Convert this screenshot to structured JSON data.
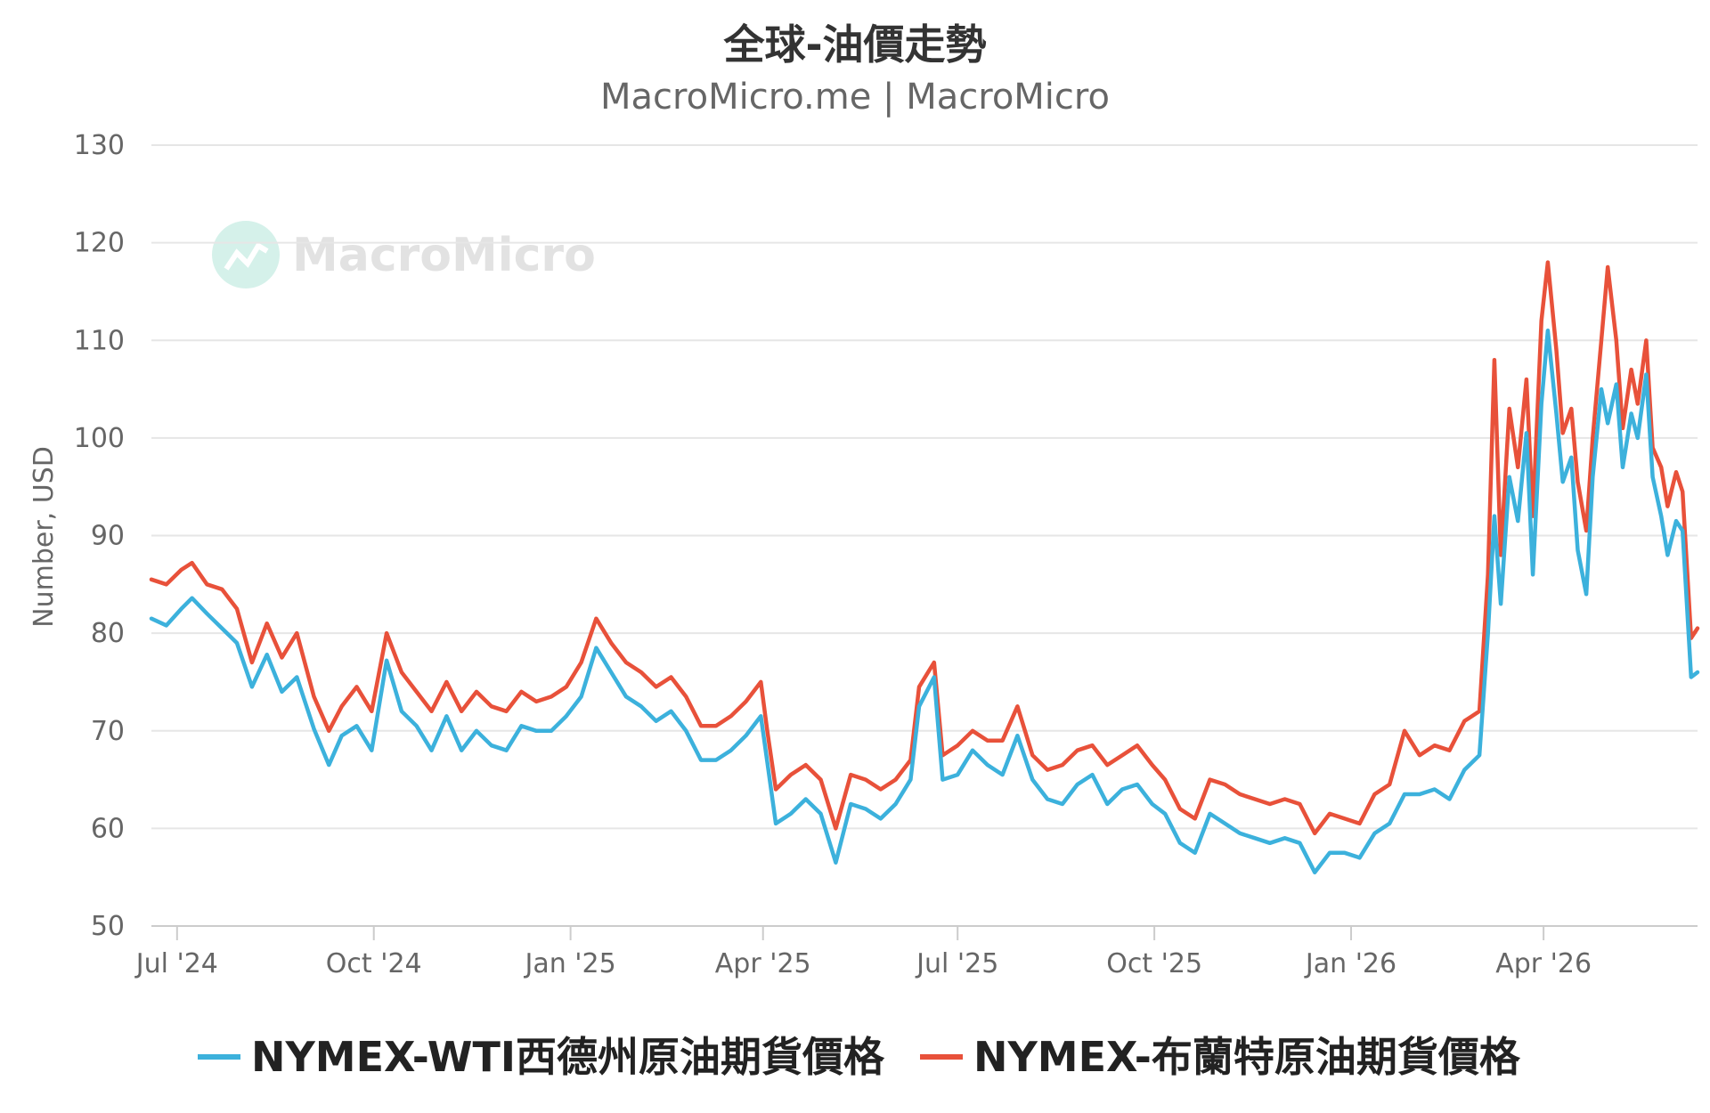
{
  "chart_data": {
    "type": "line",
    "title": "全球-油價走勢",
    "subtitle": "MacroMicro.me | MacroMicro",
    "watermark": "MacroMicro",
    "ylabel": "Number, USD",
    "xlabel": "",
    "ylim": [
      50,
      130
    ],
    "yticks": [
      50,
      60,
      70,
      80,
      90,
      100,
      110,
      120,
      130
    ],
    "xticks": [
      "Jul '24",
      "Oct '24",
      "Jan '25",
      "Apr '25",
      "Jul '25",
      "Oct '25",
      "Jan '26",
      "Apr '26"
    ],
    "xtick_dates": [
      "2024-07-01",
      "2024-10-01",
      "2025-01-01",
      "2025-04-01",
      "2025-07-01",
      "2025-10-01",
      "2026-01-01",
      "2026-04-01"
    ],
    "xlim": [
      "2024-06-19",
      "2026-06-12"
    ],
    "grid": true,
    "legend_position": "bottom",
    "series": [
      {
        "name": "NYMEX-WTI西德州原油期貨價格",
        "color": "#3cb1dc",
        "points": [
          [
            "2024-06-19",
            81.5
          ],
          [
            "2024-06-26",
            80.8
          ],
          [
            "2024-07-03",
            82.5
          ],
          [
            "2024-07-08",
            83.6
          ],
          [
            "2024-07-15",
            82.0
          ],
          [
            "2024-07-22",
            80.5
          ],
          [
            "2024-07-29",
            79.0
          ],
          [
            "2024-08-05",
            74.5
          ],
          [
            "2024-08-12",
            77.8
          ],
          [
            "2024-08-19",
            74.0
          ],
          [
            "2024-08-26",
            75.5
          ],
          [
            "2024-09-03",
            70.2
          ],
          [
            "2024-09-10",
            66.5
          ],
          [
            "2024-09-16",
            69.5
          ],
          [
            "2024-09-23",
            70.5
          ],
          [
            "2024-09-30",
            68.0
          ],
          [
            "2024-10-07",
            77.2
          ],
          [
            "2024-10-14",
            72.0
          ],
          [
            "2024-10-21",
            70.5
          ],
          [
            "2024-10-28",
            68.0
          ],
          [
            "2024-11-04",
            71.5
          ],
          [
            "2024-11-11",
            68.0
          ],
          [
            "2024-11-18",
            70.0
          ],
          [
            "2024-11-25",
            68.5
          ],
          [
            "2024-12-02",
            68.0
          ],
          [
            "2024-12-09",
            70.5
          ],
          [
            "2024-12-16",
            70.0
          ],
          [
            "2024-12-23",
            70.0
          ],
          [
            "2024-12-30",
            71.5
          ],
          [
            "2025-01-06",
            73.5
          ],
          [
            "2025-01-13",
            78.5
          ],
          [
            "2025-01-20",
            76.0
          ],
          [
            "2025-01-27",
            73.5
          ],
          [
            "2025-02-03",
            72.5
          ],
          [
            "2025-02-10",
            71.0
          ],
          [
            "2025-02-17",
            72.0
          ],
          [
            "2025-02-24",
            70.0
          ],
          [
            "2025-03-03",
            67.0
          ],
          [
            "2025-03-10",
            67.0
          ],
          [
            "2025-03-17",
            68.0
          ],
          [
            "2025-03-24",
            69.5
          ],
          [
            "2025-03-31",
            71.5
          ],
          [
            "2025-04-03",
            66.8
          ],
          [
            "2025-04-07",
            60.5
          ],
          [
            "2025-04-14",
            61.5
          ],
          [
            "2025-04-21",
            63.0
          ],
          [
            "2025-04-28",
            61.5
          ],
          [
            "2025-05-05",
            56.5
          ],
          [
            "2025-05-12",
            62.5
          ],
          [
            "2025-05-19",
            62.0
          ],
          [
            "2025-05-26",
            61.0
          ],
          [
            "2025-06-02",
            62.5
          ],
          [
            "2025-06-09",
            65.0
          ],
          [
            "2025-06-13",
            72.5
          ],
          [
            "2025-06-20",
            75.5
          ],
          [
            "2025-06-24",
            65.0
          ],
          [
            "2025-07-01",
            65.5
          ],
          [
            "2025-07-08",
            68.0
          ],
          [
            "2025-07-15",
            66.5
          ],
          [
            "2025-07-22",
            65.5
          ],
          [
            "2025-07-29",
            69.5
          ],
          [
            "2025-08-05",
            65.0
          ],
          [
            "2025-08-12",
            63.0
          ],
          [
            "2025-08-19",
            62.5
          ],
          [
            "2025-08-26",
            64.5
          ],
          [
            "2025-09-02",
            65.5
          ],
          [
            "2025-09-09",
            62.5
          ],
          [
            "2025-09-16",
            64.0
          ],
          [
            "2025-09-23",
            64.5
          ],
          [
            "2025-09-30",
            62.5
          ],
          [
            "2025-10-06",
            61.5
          ],
          [
            "2025-10-13",
            58.5
          ],
          [
            "2025-10-20",
            57.5
          ],
          [
            "2025-10-27",
            61.5
          ],
          [
            "2025-11-03",
            60.5
          ],
          [
            "2025-11-10",
            59.5
          ],
          [
            "2025-11-17",
            59.0
          ],
          [
            "2025-11-24",
            58.5
          ],
          [
            "2025-12-01",
            59.0
          ],
          [
            "2025-12-08",
            58.5
          ],
          [
            "2025-12-15",
            55.5
          ],
          [
            "2025-12-22",
            57.5
          ],
          [
            "2025-12-29",
            57.5
          ],
          [
            "2026-01-05",
            57.0
          ],
          [
            "2026-01-12",
            59.5
          ],
          [
            "2026-01-19",
            60.5
          ],
          [
            "2026-01-26",
            63.5
          ],
          [
            "2026-02-02",
            63.5
          ],
          [
            "2026-02-09",
            64.0
          ],
          [
            "2026-02-16",
            63.0
          ],
          [
            "2026-02-23",
            66.0
          ],
          [
            "2026-03-02",
            67.5
          ],
          [
            "2026-03-06",
            80.0
          ],
          [
            "2026-03-09",
            92.0
          ],
          [
            "2026-03-12",
            83.0
          ],
          [
            "2026-03-16",
            96.0
          ],
          [
            "2026-03-20",
            91.5
          ],
          [
            "2026-03-24",
            100.5
          ],
          [
            "2026-03-27",
            86.0
          ],
          [
            "2026-03-31",
            103.5
          ],
          [
            "2026-04-03",
            111.0
          ],
          [
            "2026-04-07",
            102.5
          ],
          [
            "2026-04-10",
            95.5
          ],
          [
            "2026-04-14",
            98.0
          ],
          [
            "2026-04-17",
            88.5
          ],
          [
            "2026-04-21",
            84.0
          ],
          [
            "2026-04-24",
            96.0
          ],
          [
            "2026-04-28",
            105.0
          ],
          [
            "2026-05-01",
            101.5
          ],
          [
            "2026-05-05",
            105.5
          ],
          [
            "2026-05-08",
            97.0
          ],
          [
            "2026-05-12",
            102.5
          ],
          [
            "2026-05-15",
            100.0
          ],
          [
            "2026-05-19",
            106.5
          ],
          [
            "2026-05-22",
            96.0
          ],
          [
            "2026-05-26",
            92.0
          ],
          [
            "2026-05-29",
            88.0
          ],
          [
            "2026-06-02",
            91.5
          ],
          [
            "2026-06-05",
            90.5
          ],
          [
            "2026-06-09",
            75.5
          ],
          [
            "2026-06-12",
            76.0
          ]
        ]
      },
      {
        "name": "NYMEX-布蘭特原油期貨價格",
        "color": "#e8513a",
        "points": [
          [
            "2024-06-19",
            85.5
          ],
          [
            "2024-06-26",
            85.0
          ],
          [
            "2024-07-03",
            86.5
          ],
          [
            "2024-07-08",
            87.2
          ],
          [
            "2024-07-15",
            85.0
          ],
          [
            "2024-07-22",
            84.5
          ],
          [
            "2024-07-29",
            82.5
          ],
          [
            "2024-08-05",
            77.0
          ],
          [
            "2024-08-12",
            81.0
          ],
          [
            "2024-08-19",
            77.5
          ],
          [
            "2024-08-26",
            80.0
          ],
          [
            "2024-09-03",
            73.5
          ],
          [
            "2024-09-10",
            70.0
          ],
          [
            "2024-09-16",
            72.5
          ],
          [
            "2024-09-23",
            74.5
          ],
          [
            "2024-09-30",
            72.0
          ],
          [
            "2024-10-07",
            80.0
          ],
          [
            "2024-10-14",
            76.0
          ],
          [
            "2024-10-21",
            74.0
          ],
          [
            "2024-10-28",
            72.0
          ],
          [
            "2024-11-04",
            75.0
          ],
          [
            "2024-11-11",
            72.0
          ],
          [
            "2024-11-18",
            74.0
          ],
          [
            "2024-11-25",
            72.5
          ],
          [
            "2024-12-02",
            72.0
          ],
          [
            "2024-12-09",
            74.0
          ],
          [
            "2024-12-16",
            73.0
          ],
          [
            "2024-12-23",
            73.5
          ],
          [
            "2024-12-30",
            74.5
          ],
          [
            "2025-01-06",
            77.0
          ],
          [
            "2025-01-13",
            81.5
          ],
          [
            "2025-01-20",
            79.0
          ],
          [
            "2025-01-27",
            77.0
          ],
          [
            "2025-02-03",
            76.0
          ],
          [
            "2025-02-10",
            74.5
          ],
          [
            "2025-02-17",
            75.5
          ],
          [
            "2025-02-24",
            73.5
          ],
          [
            "2025-03-03",
            70.5
          ],
          [
            "2025-03-10",
            70.5
          ],
          [
            "2025-03-17",
            71.5
          ],
          [
            "2025-03-24",
            73.0
          ],
          [
            "2025-03-31",
            75.0
          ],
          [
            "2025-04-03",
            70.0
          ],
          [
            "2025-04-07",
            64.0
          ],
          [
            "2025-04-14",
            65.5
          ],
          [
            "2025-04-21",
            66.5
          ],
          [
            "2025-04-28",
            65.0
          ],
          [
            "2025-05-05",
            60.0
          ],
          [
            "2025-05-12",
            65.5
          ],
          [
            "2025-05-19",
            65.0
          ],
          [
            "2025-05-26",
            64.0
          ],
          [
            "2025-06-02",
            65.0
          ],
          [
            "2025-06-09",
            67.0
          ],
          [
            "2025-06-13",
            74.5
          ],
          [
            "2025-06-20",
            77.0
          ],
          [
            "2025-06-24",
            67.5
          ],
          [
            "2025-07-01",
            68.5
          ],
          [
            "2025-07-08",
            70.0
          ],
          [
            "2025-07-15",
            69.0
          ],
          [
            "2025-07-22",
            69.0
          ],
          [
            "2025-07-29",
            72.5
          ],
          [
            "2025-08-05",
            67.5
          ],
          [
            "2025-08-12",
            66.0
          ],
          [
            "2025-08-19",
            66.5
          ],
          [
            "2025-08-26",
            68.0
          ],
          [
            "2025-09-02",
            68.5
          ],
          [
            "2025-09-09",
            66.5
          ],
          [
            "2025-09-16",
            67.5
          ],
          [
            "2025-09-23",
            68.5
          ],
          [
            "2025-09-30",
            66.5
          ],
          [
            "2025-10-06",
            65.0
          ],
          [
            "2025-10-13",
            62.0
          ],
          [
            "2025-10-20",
            61.0
          ],
          [
            "2025-10-27",
            65.0
          ],
          [
            "2025-11-03",
            64.5
          ],
          [
            "2025-11-10",
            63.5
          ],
          [
            "2025-11-17",
            63.0
          ],
          [
            "2025-11-24",
            62.5
          ],
          [
            "2025-12-01",
            63.0
          ],
          [
            "2025-12-08",
            62.5
          ],
          [
            "2025-12-15",
            59.5
          ],
          [
            "2025-12-22",
            61.5
          ],
          [
            "2025-12-29",
            61.0
          ],
          [
            "2026-01-05",
            60.5
          ],
          [
            "2026-01-12",
            63.5
          ],
          [
            "2026-01-19",
            64.5
          ],
          [
            "2026-01-26",
            70.0
          ],
          [
            "2026-02-02",
            67.5
          ],
          [
            "2026-02-09",
            68.5
          ],
          [
            "2026-02-16",
            68.0
          ],
          [
            "2026-02-23",
            71.0
          ],
          [
            "2026-03-02",
            72.0
          ],
          [
            "2026-03-06",
            86.0
          ],
          [
            "2026-03-09",
            108.0
          ],
          [
            "2026-03-12",
            88.0
          ],
          [
            "2026-03-16",
            103.0
          ],
          [
            "2026-03-20",
            97.0
          ],
          [
            "2026-03-24",
            106.0
          ],
          [
            "2026-03-27",
            92.0
          ],
          [
            "2026-03-31",
            112.0
          ],
          [
            "2026-04-03",
            118.0
          ],
          [
            "2026-04-07",
            109.0
          ],
          [
            "2026-04-10",
            100.5
          ],
          [
            "2026-04-14",
            103.0
          ],
          [
            "2026-04-17",
            95.5
          ],
          [
            "2026-04-21",
            90.5
          ],
          [
            "2026-04-24",
            100.0
          ],
          [
            "2026-04-28",
            110.0
          ],
          [
            "2026-05-01",
            117.5
          ],
          [
            "2026-05-05",
            110.0
          ],
          [
            "2026-05-08",
            101.0
          ],
          [
            "2026-05-12",
            107.0
          ],
          [
            "2026-05-15",
            103.5
          ],
          [
            "2026-05-19",
            110.0
          ],
          [
            "2026-05-22",
            99.0
          ],
          [
            "2026-05-26",
            97.0
          ],
          [
            "2026-05-29",
            93.0
          ],
          [
            "2026-06-02",
            96.5
          ],
          [
            "2026-06-05",
            94.5
          ],
          [
            "2026-06-09",
            79.5
          ],
          [
            "2026-06-12",
            80.5
          ]
        ]
      }
    ]
  }
}
